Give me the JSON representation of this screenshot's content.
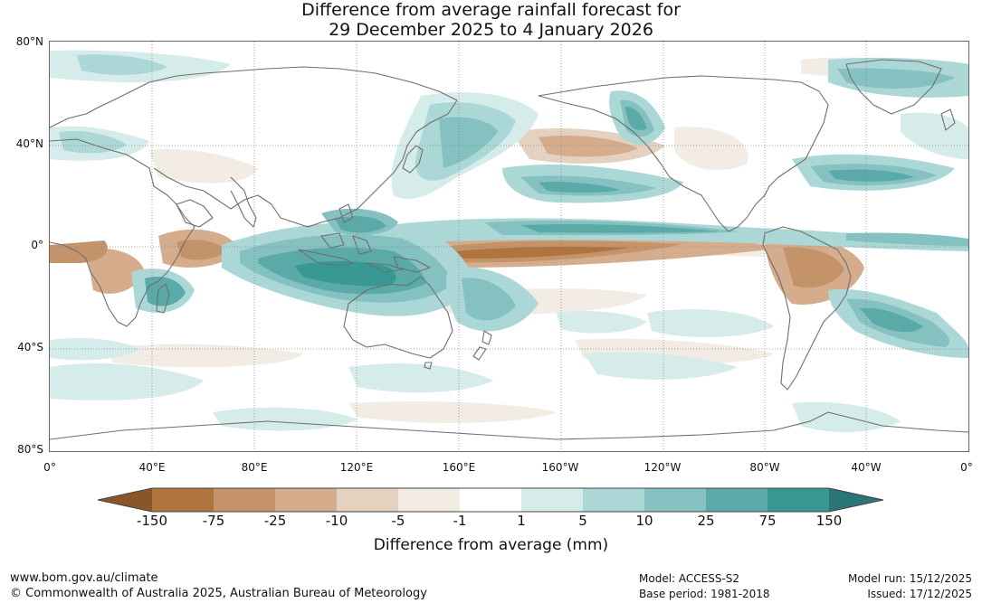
{
  "title": {
    "line1": "Difference from average rainfall forecast for",
    "line2": "29 December 2025 to 4 January 2026"
  },
  "map": {
    "lat_labels": [
      "80°N",
      "40°N",
      "0°",
      "40°S",
      "80°S"
    ],
    "lon_labels": [
      "0°",
      "40°E",
      "80°E",
      "120°E",
      "160°E",
      "160°W",
      "120°W",
      "80°W",
      "40°W",
      "0°"
    ]
  },
  "colorbar": {
    "label": "Difference from average (mm)",
    "ticks": [
      "-150",
      "-75",
      "-25",
      "-10",
      "-5",
      "-1",
      "1",
      "5",
      "10",
      "25",
      "75",
      "150"
    ],
    "colors": [
      "#8a5527",
      "#b0753f",
      "#c4936a",
      "#d5ad8d",
      "#e5d1bf",
      "#f2ece4",
      "#ffffff",
      "#d5ecea",
      "#abd8d6",
      "#85c1c0",
      "#5aaaa8",
      "#379894",
      "#2a7676"
    ]
  },
  "footer": {
    "website": "www.bom.gov.au/climate",
    "copyright": "© Commonwealth of Australia 2025, Australian Bureau of Meteorology",
    "model": "Model: ACCESS-S2",
    "base_period": "Base period: 1981-2018",
    "model_run": "Model run: 15/12/2025",
    "issued": "Issued: 17/12/2025"
  }
}
